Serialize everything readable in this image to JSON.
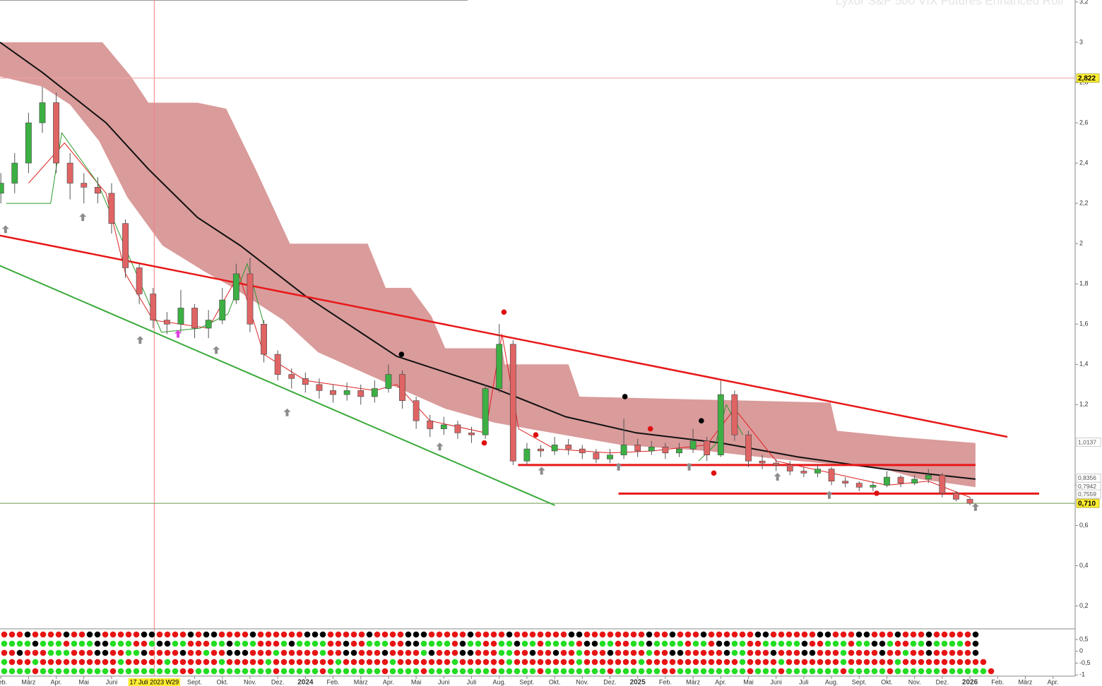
{
  "chart_data": {
    "type": "candlestick",
    "title": "Lyxor S&P 500 VIX Futures Enhanced Roll",
    "xlim": [
      0.97,
      39.8
    ],
    "ylim": [
      0.09,
      3.21
    ],
    "xticks": [
      {
        "value": 1,
        "label": "Feb."
      },
      {
        "value": 2,
        "label": "März"
      },
      {
        "value": 3,
        "label": "Apr."
      },
      {
        "value": 4,
        "label": "Mai"
      },
      {
        "value": 5,
        "label": "Juni"
      },
      {
        "value": 8,
        "label": "Sept."
      },
      {
        "value": 9,
        "label": "Okt."
      },
      {
        "value": 10,
        "label": "Nov."
      },
      {
        "value": 11,
        "label": "Dez."
      },
      {
        "value": 12,
        "label": "2024"
      },
      {
        "value": 13,
        "label": "Feb."
      },
      {
        "value": 14,
        "label": "März"
      },
      {
        "value": 15,
        "label": "Apr."
      },
      {
        "value": 16,
        "label": "Mai"
      },
      {
        "value": 17,
        "label": "Juni"
      },
      {
        "value": 18,
        "label": "Juli"
      },
      {
        "value": 19,
        "label": "Aug."
      },
      {
        "value": 20,
        "label": "Sept."
      },
      {
        "value": 21,
        "label": "Okt."
      },
      {
        "value": 22,
        "label": "Nov."
      },
      {
        "value": 23,
        "label": "Dez."
      },
      {
        "value": 24,
        "label": "2025"
      },
      {
        "value": 25,
        "label": "Feb."
      },
      {
        "value": 26,
        "label": "März"
      },
      {
        "value": 27,
        "label": "Apr."
      },
      {
        "value": 28,
        "label": "Mai"
      },
      {
        "value": 29,
        "label": "Juni"
      },
      {
        "value": 30,
        "label": "Juli"
      },
      {
        "value": 31,
        "label": "Aug."
      },
      {
        "value": 32,
        "label": "Sept."
      },
      {
        "value": 33,
        "label": "Okt."
      },
      {
        "value": 34,
        "label": "Nov."
      },
      {
        "value": 35,
        "label": "Dez."
      },
      {
        "value": 36,
        "label": "2026"
      },
      {
        "value": 37,
        "label": "Feb."
      },
      {
        "value": 38,
        "label": "März"
      },
      {
        "value": 39,
        "label": "Apr."
      }
    ],
    "yticks": [
      {
        "value": 0.2,
        "label": "0,2"
      },
      {
        "value": 0.4,
        "label": "0,4"
      },
      {
        "value": 0.6,
        "label": "0,6"
      },
      {
        "value": 0.8,
        "label": "0,8"
      },
      {
        "value": 1.2,
        "label": "1,2"
      },
      {
        "value": 1.4,
        "label": "1,4"
      },
      {
        "value": 1.6,
        "label": "1,6"
      },
      {
        "value": 1.8,
        "label": "1,8"
      },
      2,
      {
        "value": 2.2,
        "label": "2,2"
      },
      {
        "value": 2.4,
        "label": "2,4"
      },
      {
        "value": 2.6,
        "label": "2,6"
      },
      {
        "value": 2.8,
        "label": "2,8"
      },
      3,
      {
        "value": 3.2,
        "label": "3,2"
      }
    ],
    "crosshair": {
      "value": 6.54,
      "label": "17 Juli 2023 W29",
      "color": "#f08080"
    },
    "up_color": "#3cb043",
    "down_color": "#e06464",
    "x": [
      1,
      1.5,
      2,
      2.5,
      3,
      3.5,
      4,
      4.5,
      5,
      5.5,
      6,
      6.5,
      7,
      7.5,
      8,
      8.5,
      9,
      9.5,
      10,
      10.5,
      11,
      11.5,
      12,
      12.5,
      13,
      13.5,
      14,
      14.5,
      15,
      15.5,
      16,
      16.5,
      17,
      17.5,
      18,
      18.5,
      19,
      19.5,
      20,
      20.5,
      21,
      21.5,
      22,
      22.5,
      23,
      23.5,
      24,
      24.5,
      25,
      25.5,
      26,
      26.5,
      27,
      27.5,
      28,
      28.5,
      29,
      29.5,
      30,
      30.5,
      31,
      31.5,
      32,
      32.5,
      33,
      33.5,
      34,
      34.5,
      35,
      35.5,
      36
    ],
    "open": [
      2.25,
      2.3,
      2.4,
      2.6,
      2.7,
      2.4,
      2.3,
      2.28,
      2.25,
      2.1,
      1.88,
      1.75,
      1.62,
      1.6,
      1.68,
      1.58,
      1.62,
      1.72,
      1.85,
      1.6,
      1.45,
      1.35,
      1.33,
      1.3,
      1.27,
      1.25,
      1.27,
      1.24,
      1.28,
      1.35,
      1.22,
      1.12,
      1.08,
      1.1,
      1.06,
      1.05,
      1.28,
      1.5,
      0.92,
      0.98,
      0.97,
      1.0,
      0.98,
      0.96,
      0.93,
      0.95,
      1.0,
      0.97,
      0.99,
      0.96,
      0.98,
      1.02,
      0.95,
      1.25,
      1.05,
      0.92,
      0.91,
      0.9,
      0.87,
      0.86,
      0.88,
      0.82,
      0.81,
      0.79,
      0.8,
      0.84,
      0.81,
      0.83,
      0.85,
      0.76,
      0.73
    ],
    "high": [
      2.35,
      2.45,
      2.65,
      2.78,
      2.75,
      2.45,
      2.35,
      2.33,
      2.3,
      2.12,
      1.9,
      1.78,
      1.66,
      1.77,
      1.7,
      1.67,
      1.78,
      1.9,
      1.93,
      1.62,
      1.47,
      1.38,
      1.36,
      1.33,
      1.3,
      1.31,
      1.3,
      1.32,
      1.4,
      1.37,
      1.24,
      1.15,
      1.14,
      1.12,
      1.09,
      1.3,
      1.6,
      1.52,
      1.01,
      1.0,
      1.04,
      1.03,
      1.0,
      0.98,
      0.98,
      1.13,
      1.03,
      1.02,
      1.01,
      1.01,
      1.08,
      1.04,
      1.32,
      1.27,
      1.07,
      0.95,
      0.93,
      0.92,
      0.89,
      0.9,
      0.89,
      0.84,
      0.82,
      0.82,
      0.87,
      0.85,
      0.85,
      0.88,
      0.86,
      0.77,
      0.74
    ],
    "low": [
      2.2,
      2.25,
      2.35,
      2.55,
      2.35,
      2.22,
      2.2,
      2.2,
      2.05,
      1.83,
      1.7,
      1.58,
      1.55,
      1.56,
      1.53,
      1.53,
      1.6,
      1.7,
      1.56,
      1.41,
      1.32,
      1.28,
      1.26,
      1.23,
      1.21,
      1.22,
      1.2,
      1.21,
      1.26,
      1.18,
      1.08,
      1.04,
      1.05,
      1.03,
      1.01,
      1.03,
      1.26,
      0.9,
      0.9,
      0.94,
      0.95,
      0.95,
      0.93,
      0.91,
      0.91,
      0.93,
      0.94,
      0.95,
      0.93,
      0.94,
      0.96,
      0.92,
      0.94,
      1.02,
      0.89,
      0.88,
      0.87,
      0.85,
      0.84,
      0.84,
      0.8,
      0.79,
      0.77,
      0.77,
      0.79,
      0.79,
      0.8,
      0.81,
      0.74,
      0.72,
      0.7
    ],
    "close": [
      2.3,
      2.4,
      2.6,
      2.7,
      2.4,
      2.3,
      2.28,
      2.25,
      2.1,
      1.88,
      1.75,
      1.62,
      1.6,
      1.68,
      1.58,
      1.62,
      1.72,
      1.85,
      1.6,
      1.45,
      1.35,
      1.33,
      1.3,
      1.27,
      1.25,
      1.27,
      1.24,
      1.28,
      1.35,
      1.22,
      1.12,
      1.08,
      1.1,
      1.06,
      1.05,
      1.28,
      1.5,
      0.92,
      0.98,
      0.97,
      1.0,
      0.98,
      0.96,
      0.93,
      0.95,
      1.0,
      0.97,
      0.99,
      0.96,
      0.98,
      1.02,
      0.95,
      1.25,
      1.05,
      0.92,
      0.91,
      0.9,
      0.87,
      0.86,
      0.88,
      0.82,
      0.81,
      0.79,
      0.8,
      0.84,
      0.81,
      0.83,
      0.85,
      0.76,
      0.73,
      0.71
    ],
    "cloud": {
      "color": "#d69090",
      "upper": {
        "x": [
          0.97,
          4.67,
          5.7,
          6.33,
          8.1,
          9.14,
          10.2,
          11.44,
          14.25,
          14.9,
          15.8,
          16.55,
          17.05,
          19.1,
          19.2,
          21.5,
          21.9,
          30.97,
          31.2,
          33.4,
          36.2
        ],
        "values": [
          3.0,
          3.0,
          2.83,
          2.7,
          2.7,
          2.67,
          2.37,
          2.0,
          2.0,
          1.78,
          1.78,
          1.64,
          1.48,
          1.48,
          1.4,
          1.4,
          1.24,
          1.21,
          1.07,
          1.04,
          1.01
        ]
      },
      "lower": {
        "x": [
          0.97,
          2.5,
          3.5,
          4.55,
          5.57,
          6.84,
          8.37,
          9.4,
          11.2,
          12.46,
          14.25,
          17.05,
          18.85,
          20.9,
          23.4,
          26.5,
          29.05,
          32.9,
          34.2,
          36.2
        ],
        "values": [
          2.83,
          2.78,
          2.69,
          2.51,
          2.23,
          1.99,
          1.86,
          1.78,
          1.62,
          1.46,
          1.35,
          1.18,
          1.11,
          1.06,
          1.0,
          0.97,
          0.93,
          0.88,
          0.83,
          0.79
        ]
      }
    },
    "overlays": [
      {
        "kind": "line",
        "color": "#111111",
        "width": 2,
        "x": [
          0.97,
          2.5,
          4.8,
          6.33,
          8.1,
          9.65,
          12,
          15.3,
          18.85,
          21.4,
          23.95,
          27,
          29.8,
          32.9,
          36.2
        ],
        "values": [
          3.0,
          2.85,
          2.6,
          2.37,
          2.13,
          1.99,
          1.74,
          1.44,
          1.28,
          1.14,
          1.06,
          1.01,
          0.94,
          0.88,
          0.83
        ]
      },
      {
        "kind": "line",
        "color": "#e02020",
        "width": 1,
        "x": [
          2.0,
          3.3,
          4.8,
          5.5,
          6.5,
          8.5,
          9.6,
          10.5,
          12,
          14.5,
          15.3,
          16.5,
          18.5,
          19.1,
          19.7,
          21,
          23,
          24.5,
          26.5,
          27.5,
          29,
          31,
          33,
          34.5,
          36
        ],
        "values": [
          2.3,
          2.5,
          2.25,
          1.85,
          1.62,
          1.58,
          1.85,
          1.45,
          1.32,
          1.27,
          1.3,
          1.12,
          1.06,
          1.55,
          1.08,
          0.98,
          0.96,
          0.97,
          1.0,
          1.18,
          0.92,
          0.86,
          0.8,
          0.82,
          0.74
        ]
      },
      {
        "kind": "line",
        "color": "#2a9a2a",
        "width": 1,
        "x": [
          1.2,
          2.8,
          3.2,
          4.5,
          6.8,
          8.2,
          9.2,
          9.9,
          10.5,
          null,
          26.2,
          26.8,
          27.2,
          27.8
        ],
        "values": [
          2.2,
          2.2,
          2.55,
          2.3,
          1.56,
          1.58,
          1.65,
          1.9,
          1.6,
          null,
          0.92,
          1.0,
          1.2,
          1.05
        ]
      },
      {
        "kind": "line",
        "color": "#e81818",
        "width": 2.5,
        "x": [
          0.97,
          37.35
        ],
        "values": [
          2.04,
          1.04
        ]
      },
      {
        "kind": "line",
        "color": "#3aaa3a",
        "width": 2,
        "x": [
          0.97,
          21.01
        ],
        "values": [
          1.89,
          0.7
        ]
      },
      {
        "kind": "line",
        "color": "#e81818",
        "width": 3,
        "x": [
          19.68,
          36.2
        ],
        "values": [
          0.9,
          0.9
        ]
      },
      {
        "kind": "line",
        "color": "#e81818",
        "width": 3,
        "x": [
          23.31,
          38.5
        ],
        "values": [
          0.758,
          0.758
        ]
      }
    ],
    "markers": [
      {
        "shape": "dot",
        "color": "#e01010",
        "x": [
          19.17,
          18.46,
          20.32,
          24.46,
          26.75,
          32.63
        ],
        "values": [
          1.66,
          1.01,
          1.05,
          1.08,
          0.86,
          0.76
        ]
      },
      {
        "shape": "dot",
        "color": "#000000",
        "x": [
          15.47,
          23.54,
          26.3
        ],
        "values": [
          1.45,
          1.24,
          1.12
        ]
      },
      {
        "shape": "arrow",
        "color": "#8c8c8c",
        "x": [
          1.17,
          3.96,
          6.03,
          8.78,
          11.34,
          16.85,
          20.53,
          23.31,
          25.86,
          29.05,
          30.92,
          36.2
        ],
        "values": [
          2.07,
          2.13,
          1.52,
          1.47,
          1.16,
          0.99,
          0.87,
          0.89,
          0.89,
          0.84,
          0.75,
          0.69
        ]
      },
      {
        "shape": "arrow",
        "color": "#e040e0",
        "x": [
          7.4
        ],
        "values": [
          1.55
        ]
      }
    ],
    "price_lines": [
      {
        "value": 2.822,
        "label": "2,822",
        "highlight": true,
        "line_color": "#f0a0a0"
      },
      {
        "value": 1.0137,
        "label": "1,0137",
        "highlight": false,
        "line_color": null
      },
      {
        "value": 0.8356,
        "label": "0,8356",
        "highlight": false,
        "line_color": null
      },
      {
        "value": 0.7942,
        "label": "0,7942",
        "highlight": false,
        "line_color": null
      },
      {
        "value": 0.7559,
        "label": "0,7559",
        "highlight": false,
        "line_color": null
      },
      {
        "value": 0.71,
        "label": "0,710",
        "highlight": true,
        "line_color": "#6a9a4a"
      }
    ],
    "panel": {
      "ylim": [
        -1.05,
        0.95
      ],
      "yticks": [
        {
          "value": 0.5,
          "label": "0,5"
        },
        0,
        {
          "value": -0.5,
          "label": "-0,5"
        },
        -1
      ],
      "dot_colors": {
        "r": "#e81414",
        "g": "#22dd22",
        "k": "#000000"
      },
      "rows": [
        "rrrkrrrrkrrkkrrrrrkkrrrrkrkkrrrrkrrrrrrkkkrrrrrkrrrrkkkrrrrrkrrrrkrrrrrrrkkrrrrrrrrkrrkrrrkrrrrrrkkrrrrrrkkrrrkkrrrkrrrkrrrrrk",
        "ggggkgggrgggkkgggrrgkkggrrrggkgggrrrgkggggrrkrrgggrrkkggggrkggrrggkggrggggrkkggrrggkggggrggrkkggrrgggggkrrgggrggkkgrrggkggggrk",
        "rrkrrrgggrrrkkrrggkrrrrkrrgrrkkkrrrgrrrrrgrrkkrrrkrrrrgkrrrkkrrrggrrkrrkrrgrrrkrrrrgrrkkrrrrrkggrrrkrrrkkrrrgrrrrkrrgrrkrrrrrk",
        "grrrgrrrrrrrrrrgrrrrrgrrrrrrgrrrrrgrrrrrrrrgrrrrrrgrrrrrrrgrrrrrrgrrrrrrrrgrrrrrrrgrrrrrrrrrrrrgrrrrgrrrrrrrgrrrrrrgrrrrrrrrrrr",
        "ggggrgggggggggrggggggggrrggggggggggrgggggrgggggggrggggrggggggggrgggggrggggggggrggggggrrgggggggggrgggrgggggggrgggggrggggggrgggggr"
      ]
    }
  }
}
